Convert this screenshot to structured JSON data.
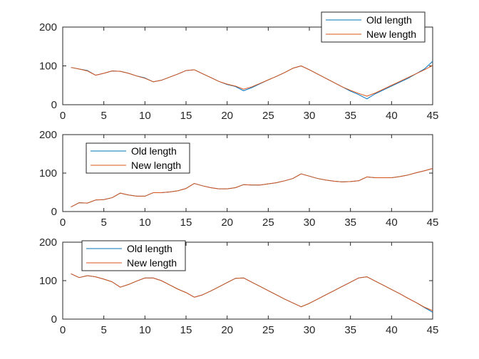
{
  "chart_data": [
    {
      "type": "line",
      "xlim": [
        0,
        45
      ],
      "ylim": [
        0,
        200
      ],
      "xticks": [
        0,
        5,
        10,
        15,
        20,
        25,
        30,
        35,
        40,
        45
      ],
      "yticks": [
        0,
        100,
        200
      ],
      "legend_position": "top-right",
      "grid": false,
      "x": [
        1,
        2,
        3,
        4,
        5,
        6,
        7,
        8,
        9,
        10,
        11,
        12,
        13,
        14,
        15,
        16,
        17,
        18,
        19,
        20,
        21,
        22,
        23,
        24,
        25,
        26,
        27,
        28,
        29,
        30,
        31,
        32,
        33,
        34,
        35,
        36,
        37,
        38,
        39,
        40,
        41,
        42,
        43,
        44,
        45
      ],
      "series": [
        {
          "name": "Old length",
          "color": "#0072BD",
          "values": [
            96,
            92,
            88,
            76,
            81,
            87,
            86,
            81,
            74,
            69,
            59,
            63,
            71,
            79,
            88,
            90,
            80,
            70,
            60,
            52,
            47,
            36,
            44,
            54,
            64,
            73,
            83,
            94,
            100,
            90,
            79,
            68,
            57,
            46,
            35,
            26,
            15,
            28,
            38,
            48,
            58,
            68,
            80,
            92,
            112
          ]
        },
        {
          "name": "New length",
          "color": "#D95319",
          "values": [
            96,
            92,
            87,
            76,
            81,
            87,
            86,
            81,
            74,
            68,
            59,
            63,
            71,
            79,
            88,
            90,
            80,
            70,
            60,
            53,
            48,
            40,
            46,
            55,
            64,
            73,
            83,
            94,
            100,
            90,
            79,
            68,
            57,
            46,
            37,
            29,
            22,
            30,
            40,
            50,
            60,
            70,
            80,
            90,
            101
          ]
        }
      ]
    },
    {
      "type": "line",
      "xlim": [
        0,
        45
      ],
      "ylim": [
        0,
        200
      ],
      "xticks": [
        0,
        5,
        10,
        15,
        20,
        25,
        30,
        35,
        40,
        45
      ],
      "yticks": [
        0,
        100,
        200
      ],
      "legend_position": "top-left",
      "grid": false,
      "x": [
        1,
        2,
        3,
        4,
        5,
        6,
        7,
        8,
        9,
        10,
        11,
        12,
        13,
        14,
        15,
        16,
        17,
        18,
        19,
        20,
        21,
        22,
        23,
        24,
        25,
        26,
        27,
        28,
        29,
        30,
        31,
        32,
        33,
        34,
        35,
        36,
        37,
        38,
        39,
        40,
        41,
        42,
        43,
        44,
        45
      ],
      "series": [
        {
          "name": "Old length",
          "color": "#0072BD",
          "values": [
            12,
            23,
            22,
            30,
            31,
            36,
            48,
            43,
            40,
            40,
            49,
            49,
            51,
            54,
            60,
            73,
            67,
            62,
            59,
            59,
            62,
            70,
            69,
            69,
            72,
            75,
            80,
            86,
            98,
            92,
            86,
            82,
            79,
            77,
            78,
            80,
            90,
            88,
            88,
            88,
            91,
            95,
            101,
            106,
            112
          ]
        },
        {
          "name": "New length",
          "color": "#D95319",
          "values": [
            12,
            23,
            22,
            30,
            31,
            36,
            48,
            43,
            40,
            40,
            49,
            49,
            51,
            54,
            60,
            73,
            67,
            62,
            59,
            59,
            62,
            70,
            69,
            69,
            72,
            75,
            80,
            86,
            98,
            92,
            86,
            82,
            79,
            77,
            78,
            80,
            90,
            88,
            88,
            88,
            91,
            95,
            101,
            106,
            112
          ]
        }
      ]
    },
    {
      "type": "line",
      "xlim": [
        0,
        45
      ],
      "ylim": [
        0,
        200
      ],
      "xticks": [
        0,
        5,
        10,
        15,
        20,
        25,
        30,
        35,
        40,
        45
      ],
      "yticks": [
        0,
        100,
        200
      ],
      "legend_position": "top-left",
      "grid": false,
      "x": [
        1,
        2,
        3,
        4,
        5,
        6,
        7,
        8,
        9,
        10,
        11,
        12,
        13,
        14,
        15,
        16,
        17,
        18,
        19,
        20,
        21,
        22,
        23,
        24,
        25,
        26,
        27,
        28,
        29,
        30,
        31,
        32,
        33,
        34,
        35,
        36,
        37,
        38,
        39,
        40,
        41,
        42,
        43,
        44,
        45
      ],
      "series": [
        {
          "name": "Old length",
          "color": "#0072BD",
          "values": [
            118,
            108,
            113,
            110,
            104,
            97,
            83,
            90,
            99,
            107,
            107,
            100,
            89,
            78,
            69,
            57,
            63,
            73,
            84,
            95,
            106,
            107,
            96,
            85,
            74,
            63,
            52,
            42,
            32,
            41,
            52,
            63,
            74,
            85,
            96,
            107,
            110,
            99,
            88,
            77,
            66,
            54,
            43,
            30,
            18
          ]
        },
        {
          "name": "New length",
          "color": "#D95319",
          "values": [
            118,
            108,
            113,
            110,
            104,
            97,
            83,
            90,
            99,
            107,
            107,
            100,
            89,
            78,
            69,
            57,
            63,
            73,
            84,
            95,
            106,
            107,
            96,
            85,
            74,
            63,
            52,
            42,
            32,
            41,
            52,
            63,
            74,
            85,
            96,
            107,
            110,
            99,
            88,
            77,
            66,
            54,
            43,
            31,
            22
          ]
        }
      ]
    }
  ]
}
